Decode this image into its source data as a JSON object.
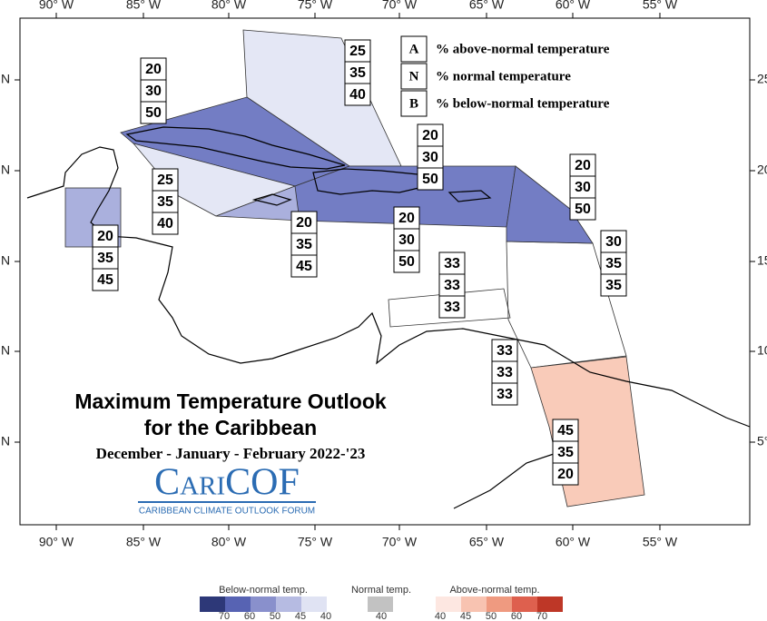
{
  "map": {
    "longitude_labels_top": [
      "90° W",
      "85° W",
      "80° W",
      "75° W",
      "70° W",
      "65° W",
      "60° W",
      "55° W"
    ],
    "longitude_labels_bottom": [
      "90° W",
      "85° W",
      "80° W",
      "75° W",
      "70° W",
      "65° W",
      "60° W",
      "55° W"
    ],
    "latitude_labels_left": [
      "N",
      "N",
      "N",
      "N",
      "N"
    ],
    "latitude_labels_right": [
      "25",
      "20",
      "15",
      "10",
      "5°"
    ],
    "key": [
      {
        "letter": "A",
        "text": "% above-normal temperature"
      },
      {
        "letter": "N",
        "text": "% normal temperature"
      },
      {
        "letter": "B",
        "text": "% below-normal temperature"
      }
    ],
    "regions": [
      [
        25,
        35,
        40
      ],
      [
        20,
        30,
        50
      ],
      [
        25,
        35,
        40
      ],
      [
        20,
        35,
        45
      ],
      [
        20,
        35,
        45
      ],
      [
        20,
        30,
        50
      ],
      [
        20,
        30,
        50
      ],
      [
        20,
        30,
        50
      ],
      [
        30,
        35,
        35
      ],
      [
        33,
        33,
        33
      ],
      [
        33,
        33,
        33
      ],
      [
        45,
        35,
        20
      ]
    ]
  },
  "title": {
    "line1": "Maximum Temperature Outlook",
    "line2": "for the Caribbean",
    "period": "December - January - February 2022-'23"
  },
  "logo": {
    "name": "CariCOF",
    "tagline": "CARIBBEAN CLIMATE OUTLOOK FORUM"
  },
  "colorbar": {
    "below": {
      "label": "Below-normal temp.",
      "ticks": [
        70,
        60,
        50,
        45,
        40
      ],
      "colors": [
        "#2d3878",
        "#5763b3",
        "#8990cc",
        "#b6bbe2",
        "#e0e3f3"
      ]
    },
    "normal": {
      "label": "Normal temp.",
      "ticks": [
        40
      ],
      "colors": [
        "#c2c2c2"
      ]
    },
    "above": {
      "label": "Above-normal temp.",
      "ticks": [
        40,
        45,
        50,
        60,
        70
      ],
      "colors": [
        "#fde7e1",
        "#f8c3b1",
        "#ef9a80",
        "#de604e",
        "#be3727"
      ]
    }
  }
}
